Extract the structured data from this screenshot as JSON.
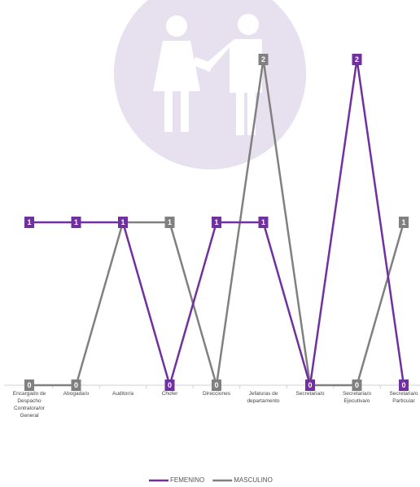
{
  "chart_data": {
    "type": "line",
    "categories": [
      "Encargado de Despacho Contralora/or General",
      "Abogada/o",
      "Auditor/a",
      "Chofer",
      "Direcciones",
      "Jefaturas de departamento",
      "Secretaria/o",
      "Secretaria/o Ejecutiva/o",
      "Secretaria/o Particular"
    ],
    "series": [
      {
        "name": "FEMENINO",
        "color": "#7030a0",
        "values": [
          1,
          1,
          1,
          0,
          1,
          1,
          0,
          2,
          0
        ]
      },
      {
        "name": "MASCULINO",
        "color": "#808080",
        "values": [
          0,
          0,
          1,
          1,
          0,
          2,
          0,
          0,
          1
        ]
      }
    ],
    "ylim": [
      0,
      2
    ],
    "legend": "bottom"
  }
}
